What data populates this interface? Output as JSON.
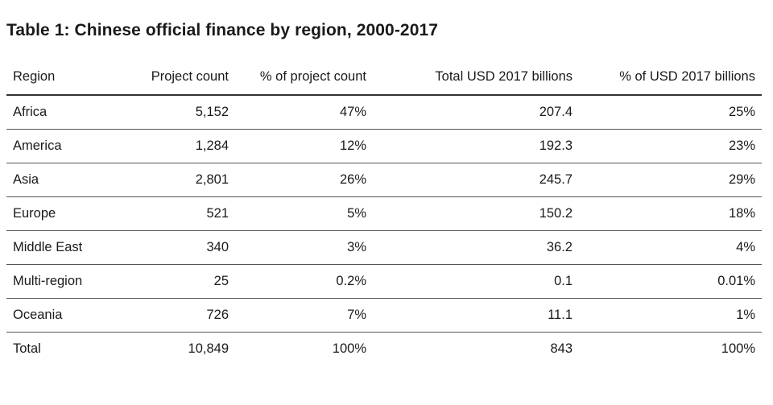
{
  "title": "Table 1: Chinese official finance by region, 2000-2017",
  "table": {
    "headers": [
      "Region",
      "Project count",
      "% of project count",
      "Total USD 2017 billions",
      "% of USD 2017 billions"
    ],
    "rows": [
      [
        "Africa",
        "5,152",
        "47%",
        "207.4",
        "25%"
      ],
      [
        "America",
        "1,284",
        "12%",
        "192.3",
        "23%"
      ],
      [
        "Asia",
        "2,801",
        "26%",
        "245.7",
        "29%"
      ],
      [
        "Europe",
        "521",
        "5%",
        "150.2",
        "18%"
      ],
      [
        "Middle East",
        "340",
        "3%",
        "36.2",
        "4%"
      ],
      [
        "Multi-region",
        "25",
        "0.2%",
        "0.1",
        "0.01%"
      ],
      [
        "Oceania",
        "726",
        "7%",
        "11.1",
        "1%"
      ],
      [
        "Total",
        "10,849",
        "100%",
        "843",
        "100%"
      ]
    ]
  }
}
